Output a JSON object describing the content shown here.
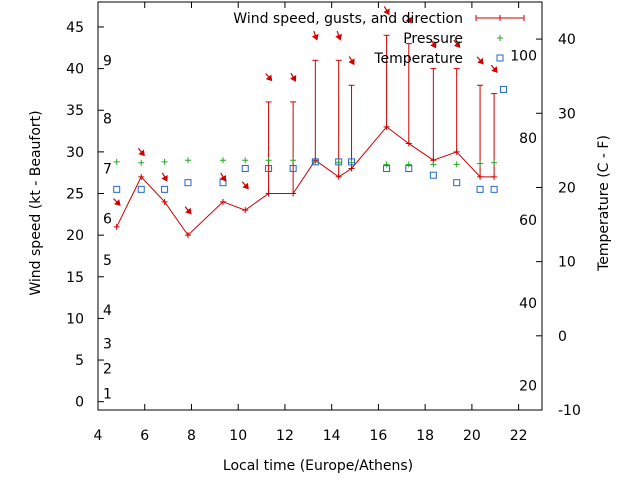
{
  "chart_data": {
    "type": "line",
    "xlabel": "Local time (Europe/Athens)",
    "ylabel": "Wind speed (kt - Beaufort)",
    "y2label": "Temperature (C - F)",
    "xlim": [
      4,
      23
    ],
    "ylim": [
      -1,
      48
    ],
    "y2lim": [
      -10,
      45
    ],
    "x_ticks": [
      4,
      6,
      8,
      10,
      12,
      14,
      16,
      18,
      20,
      22
    ],
    "y_ticks": [
      0,
      5,
      10,
      15,
      20,
      25,
      30,
      35,
      40,
      45
    ],
    "y2_ticks": [
      -10,
      0,
      10,
      20,
      30,
      40
    ],
    "beaufort_labels": [
      {
        "label": "1",
        "kt": 1
      },
      {
        "label": "2",
        "kt": 4
      },
      {
        "label": "3",
        "kt": 7
      },
      {
        "label": "4",
        "kt": 11
      },
      {
        "label": "5",
        "kt": 17
      },
      {
        "label": "6",
        "kt": 22
      },
      {
        "label": "7",
        "kt": 28
      },
      {
        "label": "8",
        "kt": 34
      },
      {
        "label": "9",
        "kt": 41
      }
    ],
    "fahrenheit_labels": [
      {
        "label": "20",
        "c": -6.7
      },
      {
        "label": "40",
        "c": 4.4
      },
      {
        "label": "60",
        "c": 15.6
      },
      {
        "label": "80",
        "c": 26.7
      },
      {
        "label": "100",
        "c": 37.8
      }
    ],
    "legend": [
      "Wind speed, gusts, and direction",
      "Pressure",
      "Temperature"
    ],
    "legend_position": "top-right",
    "series": [
      {
        "name": "Wind speed, gusts, and direction",
        "color": "#cc0000",
        "points": [
          {
            "x": 4.8,
            "speed": 21,
            "gust": 21,
            "dir": 315
          },
          {
            "x": 5.85,
            "speed": 27,
            "gust": 27,
            "dir": 320
          },
          {
            "x": 6.85,
            "speed": 24,
            "gust": 24,
            "dir": 330
          },
          {
            "x": 7.85,
            "speed": 20,
            "gust": 20,
            "dir": 320
          },
          {
            "x": 9.35,
            "speed": 24,
            "gust": 24,
            "dir": 330
          },
          {
            "x": 10.3,
            "speed": 23,
            "gust": 23,
            "dir": 320
          },
          {
            "x": 11.3,
            "speed": 25,
            "gust": 36,
            "dir": 320
          },
          {
            "x": 12.35,
            "speed": 25,
            "gust": 36,
            "dir": 330
          },
          {
            "x": 13.3,
            "speed": 29,
            "gust": 41,
            "dir": 340
          },
          {
            "x": 14.3,
            "speed": 27,
            "gust": 41,
            "dir": 340
          },
          {
            "x": 14.85,
            "speed": 28,
            "gust": 38,
            "dir": 330
          },
          {
            "x": 16.35,
            "speed": 33,
            "gust": 44,
            "dir": 330
          },
          {
            "x": 17.3,
            "speed": 31,
            "gust": 43,
            "dir": 330
          },
          {
            "x": 18.35,
            "speed": 29,
            "gust": 40,
            "dir": 330
          },
          {
            "x": 19.35,
            "speed": 30,
            "gust": 40,
            "dir": 320
          },
          {
            "x": 20.35,
            "speed": 27,
            "gust": 38,
            "dir": 320
          },
          {
            "x": 20.95,
            "speed": 27,
            "gust": 37,
            "dir": 320
          }
        ]
      },
      {
        "name": "Pressure",
        "color": "#22aa22",
        "points": [
          {
            "x": 4.8,
            "y": 28.8
          },
          {
            "x": 5.85,
            "y": 28.7
          },
          {
            "x": 6.85,
            "y": 28.8
          },
          {
            "x": 7.85,
            "y": 29.0
          },
          {
            "x": 9.35,
            "y": 29.0
          },
          {
            "x": 10.3,
            "y": 29.0
          },
          {
            "x": 11.3,
            "y": 29.0
          },
          {
            "x": 12.35,
            "y": 29.0
          },
          {
            "x": 13.3,
            "y": 28.8
          },
          {
            "x": 14.3,
            "y": 28.7
          },
          {
            "x": 14.85,
            "y": 28.7
          },
          {
            "x": 16.35,
            "y": 28.5
          },
          {
            "x": 17.3,
            "y": 28.5
          },
          {
            "x": 18.35,
            "y": 28.5
          },
          {
            "x": 19.35,
            "y": 28.5
          },
          {
            "x": 20.35,
            "y": 28.6
          },
          {
            "x": 20.95,
            "y": 28.7
          }
        ]
      },
      {
        "name": "Temperature",
        "color": "#2266cc",
        "points": [
          {
            "x": 4.8,
            "y": 25.5
          },
          {
            "x": 5.85,
            "y": 25.5
          },
          {
            "x": 6.85,
            "y": 25.5
          },
          {
            "x": 7.85,
            "y": 26.3
          },
          {
            "x": 9.35,
            "y": 26.3
          },
          {
            "x": 10.3,
            "y": 28.0
          },
          {
            "x": 11.3,
            "y": 28.0
          },
          {
            "x": 12.35,
            "y": 28.0
          },
          {
            "x": 13.3,
            "y": 28.8
          },
          {
            "x": 14.3,
            "y": 28.8
          },
          {
            "x": 14.85,
            "y": 28.8
          },
          {
            "x": 16.35,
            "y": 28.0
          },
          {
            "x": 17.3,
            "y": 28.0
          },
          {
            "x": 18.35,
            "y": 27.2
          },
          {
            "x": 19.35,
            "y": 26.3
          },
          {
            "x": 20.35,
            "y": 25.5
          },
          {
            "x": 20.95,
            "y": 25.5
          },
          {
            "x": 21.35,
            "y": 37.5
          }
        ]
      }
    ]
  }
}
